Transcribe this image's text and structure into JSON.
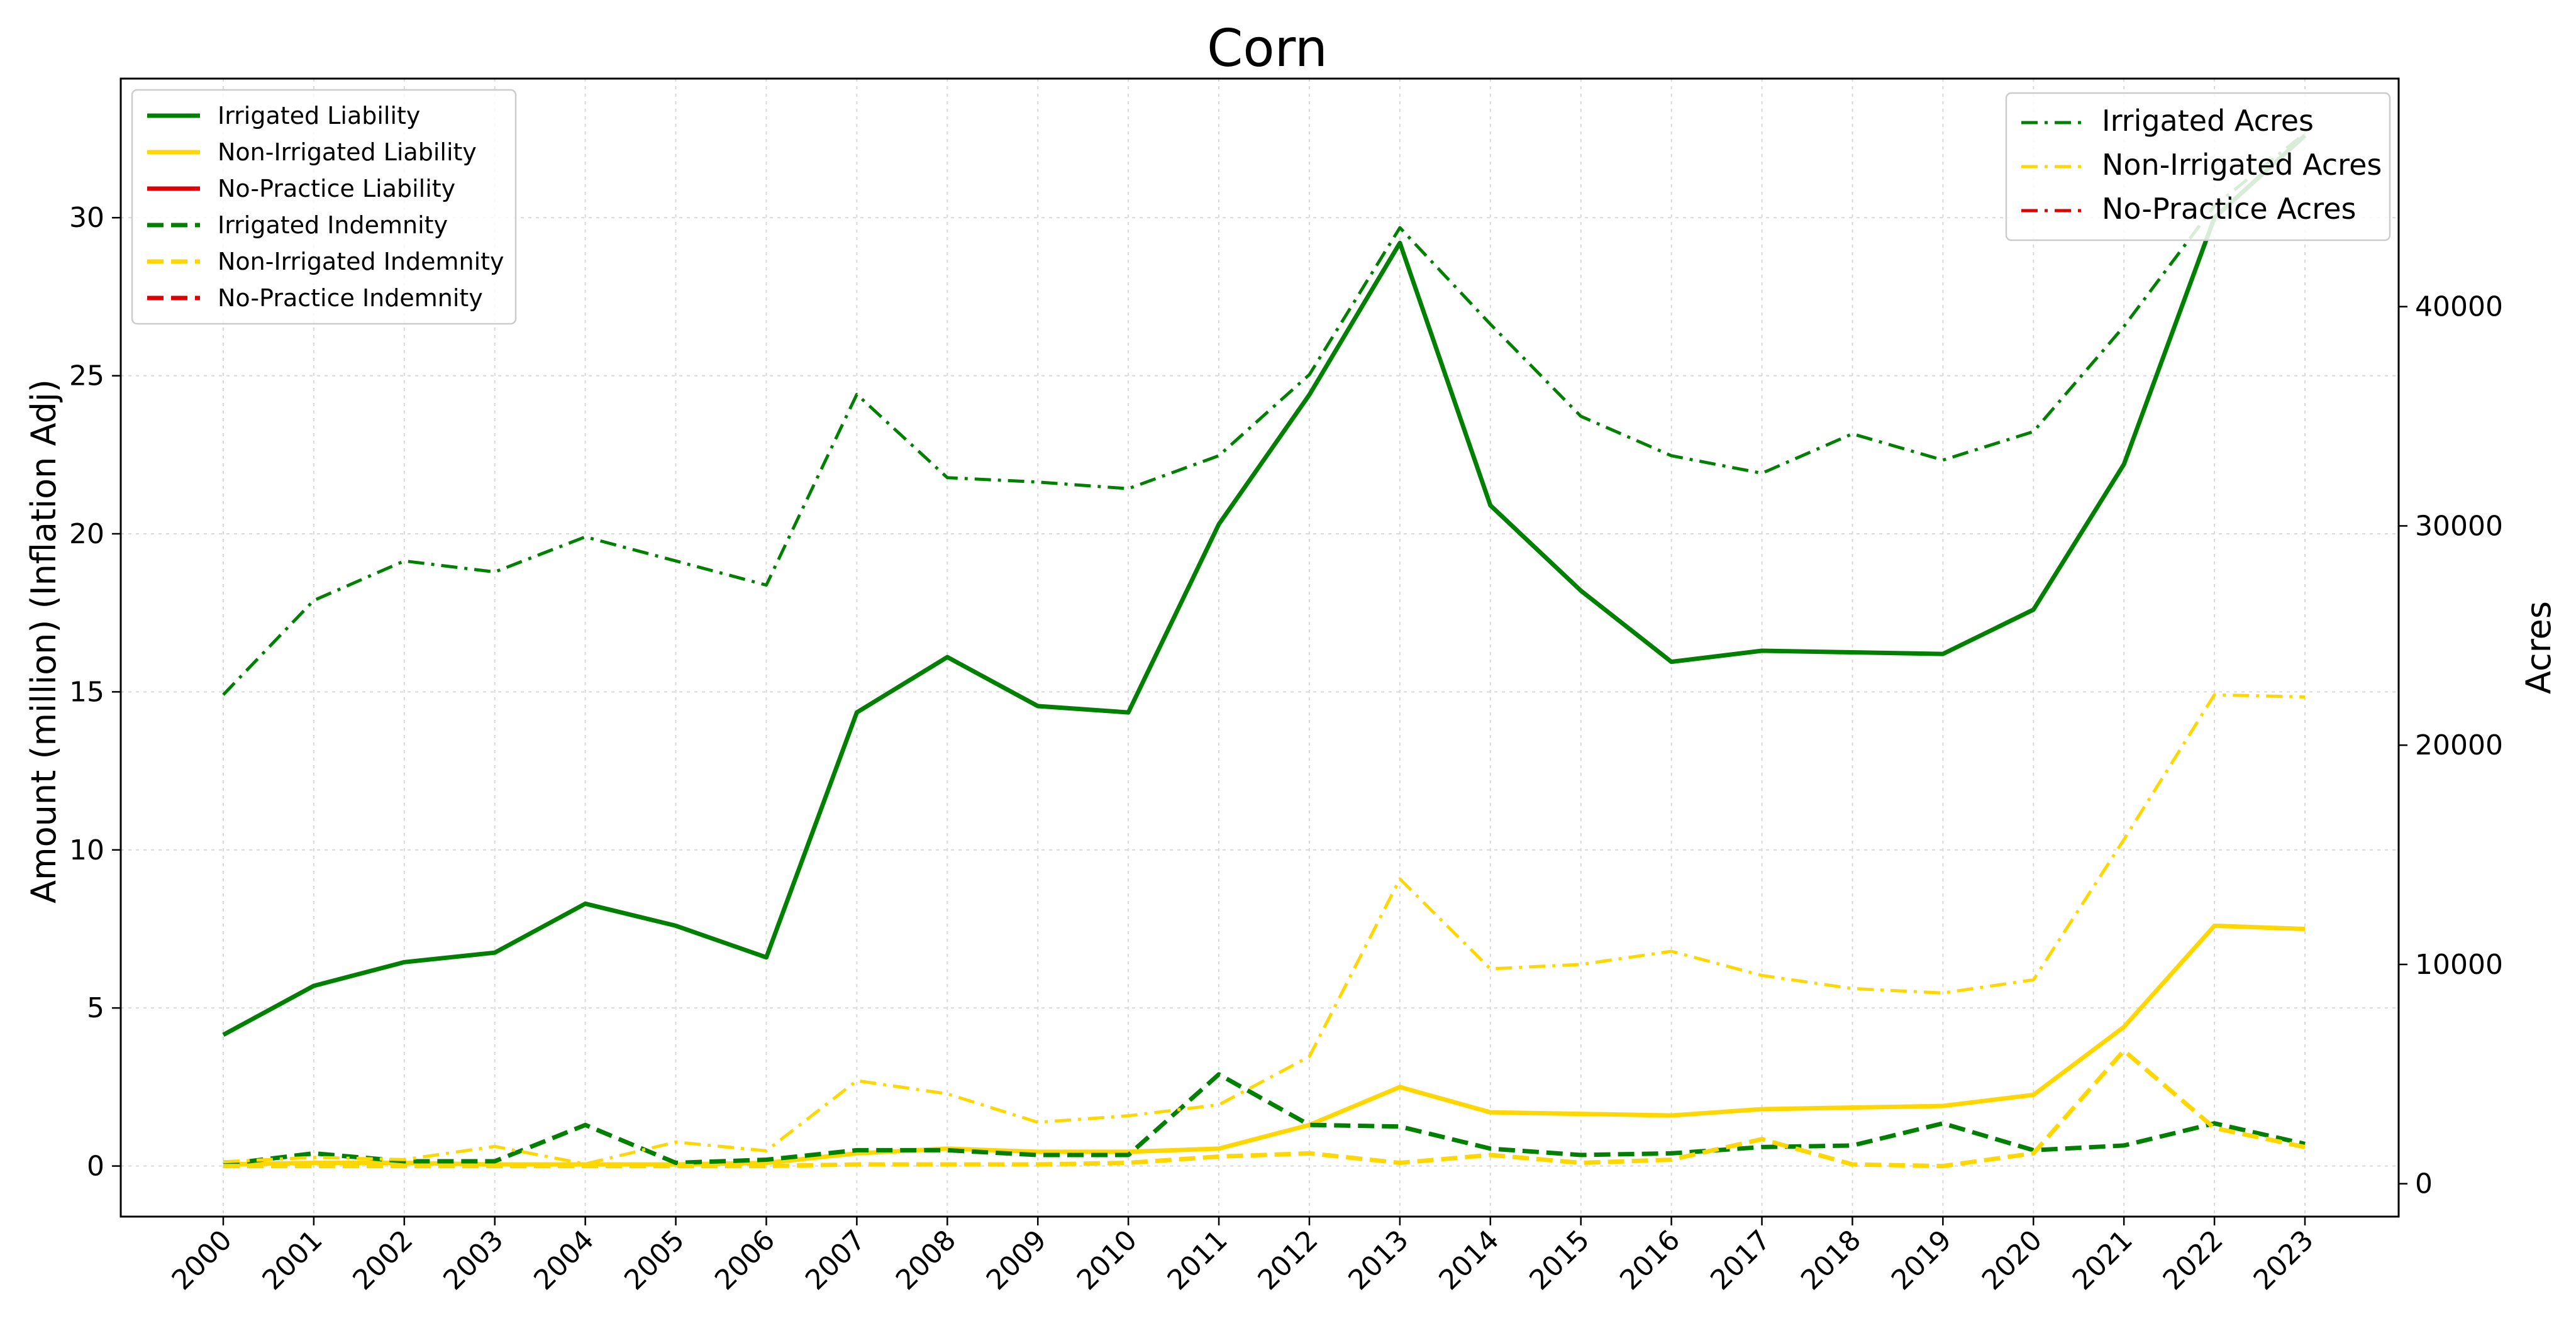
{
  "chart_data": {
    "type": "line",
    "title": "Corn",
    "ylabel": "Amount (million) (Inflation Adj)",
    "y2label": "Acres",
    "xlabel": "",
    "ylim": [
      -1.6,
      34.4
    ],
    "y2lim": [
      -1500,
      50400
    ],
    "yticks": [
      0,
      5,
      10,
      15,
      20,
      25,
      30
    ],
    "y2ticks": [
      0,
      10000,
      20000,
      30000,
      40000
    ],
    "grid": true,
    "legend_left_placement": "top-left",
    "legend_right_placement": "top-right",
    "categories": [
      "2000",
      "2001",
      "2002",
      "2003",
      "2004",
      "2005",
      "2006",
      "2007",
      "2008",
      "2009",
      "2010",
      "2011",
      "2012",
      "2013",
      "2014",
      "2015",
      "2016",
      "2017",
      "2018",
      "2019",
      "2020",
      "2021",
      "2022",
      "2023"
    ],
    "series": [
      {
        "name": "Irrigated Liability",
        "axis": "left",
        "style": "solid",
        "color": "#008000",
        "values": [
          4.15,
          5.7,
          6.45,
          6.75,
          8.3,
          7.6,
          6.6,
          14.35,
          16.1,
          14.55,
          14.35,
          20.3,
          24.4,
          29.2,
          20.9,
          18.2,
          15.95,
          16.3,
          16.25,
          16.2,
          17.6,
          22.2,
          30.0,
          32.6
        ]
      },
      {
        "name": "Non-Irrigated Liability",
        "axis": "left",
        "style": "solid",
        "color": "#FFD700",
        "values": [
          0.05,
          0.1,
          0.1,
          0.05,
          0.05,
          0.05,
          0.1,
          0.4,
          0.55,
          0.45,
          0.45,
          0.55,
          1.3,
          2.5,
          1.7,
          1.65,
          1.6,
          1.8,
          1.85,
          1.9,
          2.25,
          4.4,
          7.6,
          7.5
        ]
      },
      {
        "name": "No-Practice Liability",
        "axis": "left",
        "style": "solid",
        "color": "#E00000",
        "values": [
          null,
          null,
          null,
          null,
          null,
          null,
          null,
          null,
          null,
          null,
          null,
          null,
          null,
          null,
          null,
          null,
          null,
          null,
          null,
          null,
          null,
          null,
          null,
          null
        ]
      },
      {
        "name": "Irrigated Indemnity",
        "axis": "left",
        "style": "dashed",
        "color": "#008000",
        "values": [
          0.05,
          0.4,
          0.15,
          0.15,
          1.3,
          0.1,
          0.2,
          0.5,
          0.5,
          0.35,
          0.35,
          2.9,
          1.3,
          1.25,
          0.55,
          0.35,
          0.4,
          0.6,
          0.65,
          1.35,
          0.5,
          0.65,
          1.35,
          0.7
        ]
      },
      {
        "name": "Non-Irrigated Indemnity",
        "axis": "left",
        "style": "dashed",
        "color": "#FFD700",
        "values": [
          0.0,
          0.0,
          0.0,
          0.0,
          0.0,
          0.0,
          0.0,
          0.05,
          0.05,
          0.05,
          0.1,
          0.3,
          0.4,
          0.1,
          0.35,
          0.1,
          0.2,
          0.85,
          0.05,
          0.0,
          0.4,
          3.65,
          1.2,
          0.6
        ]
      },
      {
        "name": "No-Practice Indemnity",
        "axis": "left",
        "style": "dashed",
        "color": "#E00000",
        "values": [
          null,
          null,
          null,
          null,
          null,
          null,
          null,
          null,
          null,
          null,
          null,
          null,
          null,
          null,
          null,
          null,
          null,
          null,
          null,
          null,
          null,
          null,
          null,
          null
        ]
      },
      {
        "name": "Irrigated Acres",
        "axis": "right",
        "style": "dashdot",
        "color": "#008000",
        "values": [
          22300,
          26600,
          28400,
          27900,
          29500,
          28400,
          27300,
          36000,
          32200,
          32000,
          31700,
          33200,
          36900,
          43600,
          39200,
          35000,
          33200,
          32400,
          34200,
          33000,
          34300,
          39100,
          44600,
          47900
        ]
      },
      {
        "name": "Non-Irrigated Acres",
        "axis": "right",
        "style": "dashdot",
        "color": "#FFD700",
        "values": [
          1000,
          1200,
          1100,
          1700,
          900,
          1900,
          1500,
          4700,
          4100,
          2800,
          3100,
          3600,
          5800,
          13900,
          9800,
          10000,
          10600,
          9500,
          8900,
          8700,
          9300,
          15700,
          22300,
          22200
        ]
      },
      {
        "name": "No-Practice Acres",
        "axis": "right",
        "style": "dashdot",
        "color": "#E00000",
        "values": [
          null,
          null,
          null,
          null,
          null,
          null,
          null,
          null,
          null,
          null,
          null,
          null,
          null,
          null,
          null,
          null,
          null,
          null,
          null,
          null,
          null,
          null,
          null,
          null
        ]
      }
    ]
  }
}
